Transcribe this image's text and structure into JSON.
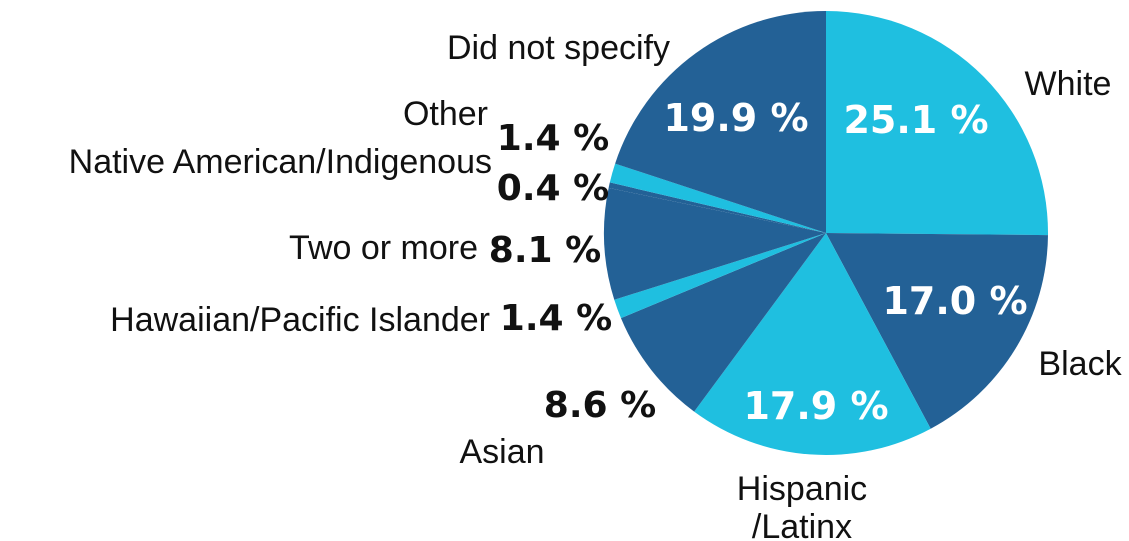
{
  "chart_data": {
    "type": "pie",
    "title": "",
    "categories": [
      "White",
      "Black",
      "Hispanic\n/Latinx",
      "Asian",
      "Hawaiian/Pacific Islander",
      "Two or more",
      "Native American/Indigenous",
      "Other",
      "Did not specify"
    ],
    "values": [
      25.1,
      17.0,
      17.9,
      8.6,
      1.4,
      8.1,
      0.4,
      1.4,
      19.9
    ],
    "value_labels": [
      "25.1 %",
      "17.0 %",
      "17.9 %",
      "8.6 %",
      "1.4 %",
      "8.1 %",
      "0.4 %",
      "1.4 %",
      "19.9 %"
    ],
    "colors": {
      "light": "#1fbfe0",
      "dark": "#236196",
      "inner_text": "#ffffff",
      "outer_text": "#111111"
    },
    "slice_colors": [
      "light",
      "dark",
      "light",
      "dark",
      "light",
      "dark",
      "dark",
      "light",
      "dark"
    ]
  }
}
